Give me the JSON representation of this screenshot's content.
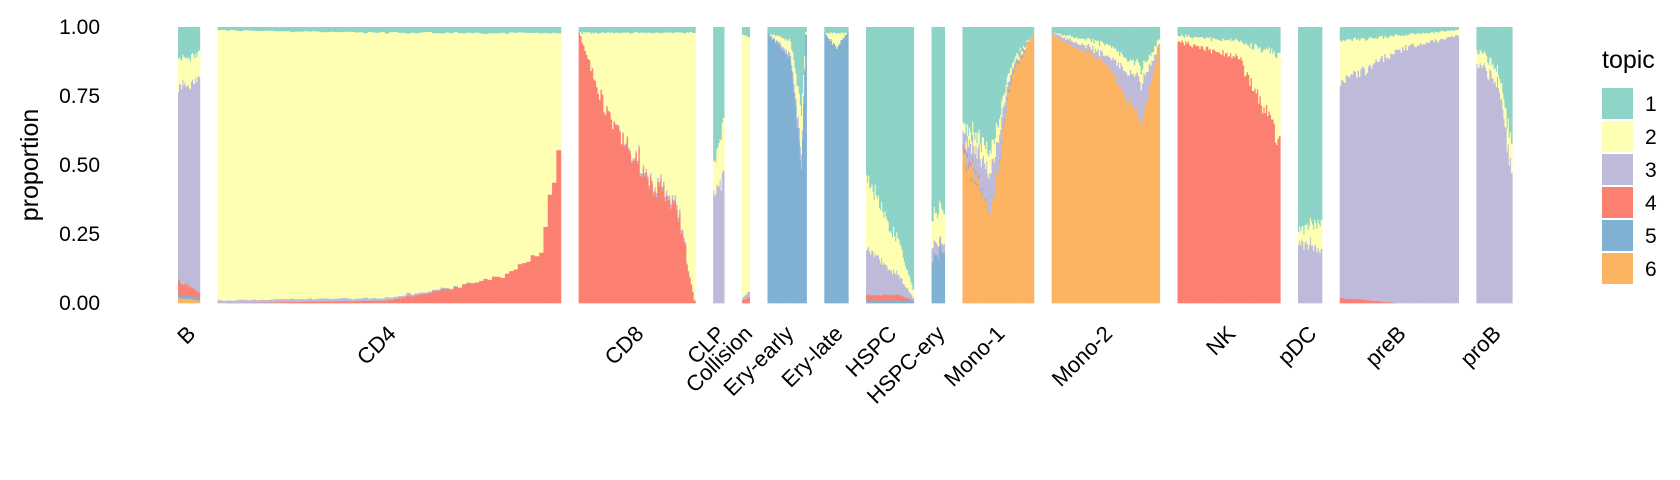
{
  "chart_data": {
    "type": "stacked-bar",
    "title": "",
    "ylabel": "proportion",
    "xlabel": "",
    "ylim": [
      0,
      1
    ],
    "yticks": [
      "0.00",
      "0.25",
      "0.50",
      "0.75",
      "1.00"
    ],
    "legend": {
      "title": "topic",
      "position": "right"
    },
    "topics": [
      {
        "name": "1",
        "color": "#8DD3C7"
      },
      {
        "name": "2",
        "color": "#FFFFB3"
      },
      {
        "name": "3",
        "color": "#BEBADA"
      },
      {
        "name": "4",
        "color": "#FB8072"
      },
      {
        "name": "5",
        "color": "#80B1D3"
      },
      {
        "name": "6",
        "color": "#FDB462"
      }
    ],
    "stack_order_bottom_to_top": [
      "6",
      "5",
      "4",
      "3",
      "2",
      "1"
    ],
    "groups": [
      {
        "label": "B",
        "units": 20,
        "profile": [
          [
            0,
            0.12,
            0.1,
            0.7,
            0.05,
            0.01,
            0.02
          ],
          [
            1,
            0.1,
            0.1,
            0.76,
            0.02,
            0.01,
            0.01
          ]
        ]
      },
      {
        "label": "CD4",
        "units": 318,
        "profile": [
          [
            0,
            0.01,
            0.98,
            0.01,
            0.0,
            0.0,
            0.0
          ],
          [
            0.5,
            0.02,
            0.96,
            0.01,
            0.01,
            0.0,
            0.0
          ],
          [
            0.8,
            0.02,
            0.9,
            0.0,
            0.08,
            0.0,
            0.0
          ],
          [
            0.95,
            0.02,
            0.8,
            0.0,
            0.18,
            0.0,
            0.0
          ],
          [
            1,
            0.02,
            0.45,
            0.0,
            0.53,
            0.0,
            0.0
          ]
        ]
      },
      {
        "label": "CD8",
        "units": 108,
        "profile": [
          [
            0,
            0.02,
            0.0,
            0.0,
            0.98,
            0.0,
            0.0
          ],
          [
            0.2,
            0.02,
            0.25,
            0.0,
            0.73,
            0.0,
            0.0
          ],
          [
            0.5,
            0.02,
            0.45,
            0.01,
            0.52,
            0.0,
            0.0
          ],
          [
            0.85,
            0.02,
            0.62,
            0.02,
            0.34,
            0.0,
            0.0
          ],
          [
            1,
            0.02,
            0.97,
            0.0,
            0.01,
            0.0,
            0.0
          ]
        ]
      },
      {
        "label": "CLP",
        "units": 10,
        "profile": [
          [
            0,
            0.5,
            0.1,
            0.4,
            0.0,
            0.0,
            0.0
          ],
          [
            1,
            0.35,
            0.2,
            0.45,
            0.0,
            0.0,
            0.0
          ]
        ]
      },
      {
        "label": "Collision",
        "units": 7,
        "profile": [
          [
            0,
            0.03,
            0.95,
            0.01,
            0.01,
            0.0,
            0.0
          ],
          [
            1,
            0.03,
            0.93,
            0.02,
            0.02,
            0.0,
            0.0
          ]
        ]
      },
      {
        "label": "Ery-early",
        "units": 36,
        "profile": [
          [
            0,
            0.02,
            0.0,
            0.0,
            0.0,
            0.98,
            0.0
          ],
          [
            0.6,
            0.05,
            0.05,
            0.02,
            0.0,
            0.88,
            0.0
          ],
          [
            0.9,
            0.3,
            0.15,
            0.05,
            0.0,
            0.5,
            0.0
          ],
          [
            1,
            0.02,
            0.01,
            0.0,
            0.0,
            0.97,
            0.0
          ]
        ]
      },
      {
        "label": "Ery-late",
        "units": 22,
        "profile": [
          [
            0,
            0.02,
            0.0,
            0.0,
            0.0,
            0.98,
            0.0
          ],
          [
            0.5,
            0.02,
            0.05,
            0.0,
            0.0,
            0.93,
            0.0
          ],
          [
            1,
            0.02,
            0.0,
            0.0,
            0.0,
            0.98,
            0.0
          ]
        ]
      },
      {
        "label": "HSPC",
        "units": 44,
        "profile": [
          [
            0,
            0.55,
            0.25,
            0.17,
            0.02,
            0.01,
            0.0
          ],
          [
            0.7,
            0.78,
            0.12,
            0.07,
            0.02,
            0.01,
            0.0
          ],
          [
            1,
            0.95,
            0.03,
            0.01,
            0.0,
            0.01,
            0.0
          ]
        ]
      },
      {
        "label": "HSPC-ery",
        "units": 12,
        "profile": [
          [
            0,
            0.7,
            0.1,
            0.05,
            0.0,
            0.15,
            0.0
          ],
          [
            1,
            0.65,
            0.12,
            0.03,
            0.0,
            0.2,
            0.0
          ]
        ]
      },
      {
        "label": "Mono-1",
        "units": 66,
        "profile": [
          [
            0,
            0.35,
            0.03,
            0.05,
            0.01,
            0.01,
            0.55
          ],
          [
            0.4,
            0.45,
            0.08,
            0.15,
            0.0,
            0.0,
            0.32
          ],
          [
            0.7,
            0.12,
            0.02,
            0.01,
            0.0,
            0.01,
            0.84
          ],
          [
            1,
            0.03,
            0.0,
            0.0,
            0.0,
            0.0,
            0.97
          ]
        ]
      },
      {
        "label": "Mono-2",
        "units": 100,
        "profile": [
          [
            0,
            0.02,
            0.0,
            0.01,
            0.0,
            0.0,
            0.97
          ],
          [
            0.5,
            0.06,
            0.04,
            0.03,
            0.0,
            0.0,
            0.87
          ],
          [
            0.85,
            0.15,
            0.05,
            0.15,
            0.0,
            0.0,
            0.65
          ],
          [
            1,
            0.05,
            0.02,
            0.0,
            0.0,
            0.0,
            0.93
          ]
        ]
      },
      {
        "label": "NK",
        "units": 95,
        "profile": [
          [
            0,
            0.03,
            0.02,
            0.0,
            0.95,
            0.0,
            0.0
          ],
          [
            0.6,
            0.05,
            0.06,
            0.0,
            0.89,
            0.0,
            0.0
          ],
          [
            1,
            0.1,
            0.3,
            0.0,
            0.6,
            0.0,
            0.0
          ]
        ]
      },
      {
        "label": "pDC",
        "units": 22,
        "profile": [
          [
            0,
            0.72,
            0.05,
            0.23,
            0.0,
            0.0,
            0.0
          ],
          [
            1,
            0.7,
            0.1,
            0.2,
            0.0,
            0.0,
            0.0
          ]
        ]
      },
      {
        "label": "preB",
        "units": 110,
        "profile": [
          [
            0,
            0.05,
            0.15,
            0.78,
            0.02,
            0.0,
            0.0
          ],
          [
            0.5,
            0.03,
            0.05,
            0.92,
            0.0,
            0.0,
            0.0
          ],
          [
            1,
            0.01,
            0.02,
            0.97,
            0.0,
            0.0,
            0.0
          ]
        ]
      },
      {
        "label": "proB",
        "units": 33,
        "profile": [
          [
            0,
            0.08,
            0.05,
            0.87,
            0.0,
            0.0,
            0.0
          ],
          [
            0.6,
            0.15,
            0.05,
            0.8,
            0.0,
            0.0,
            0.0
          ],
          [
            1,
            0.4,
            0.1,
            0.5,
            0.0,
            0.0,
            0.0
          ]
        ]
      }
    ]
  }
}
